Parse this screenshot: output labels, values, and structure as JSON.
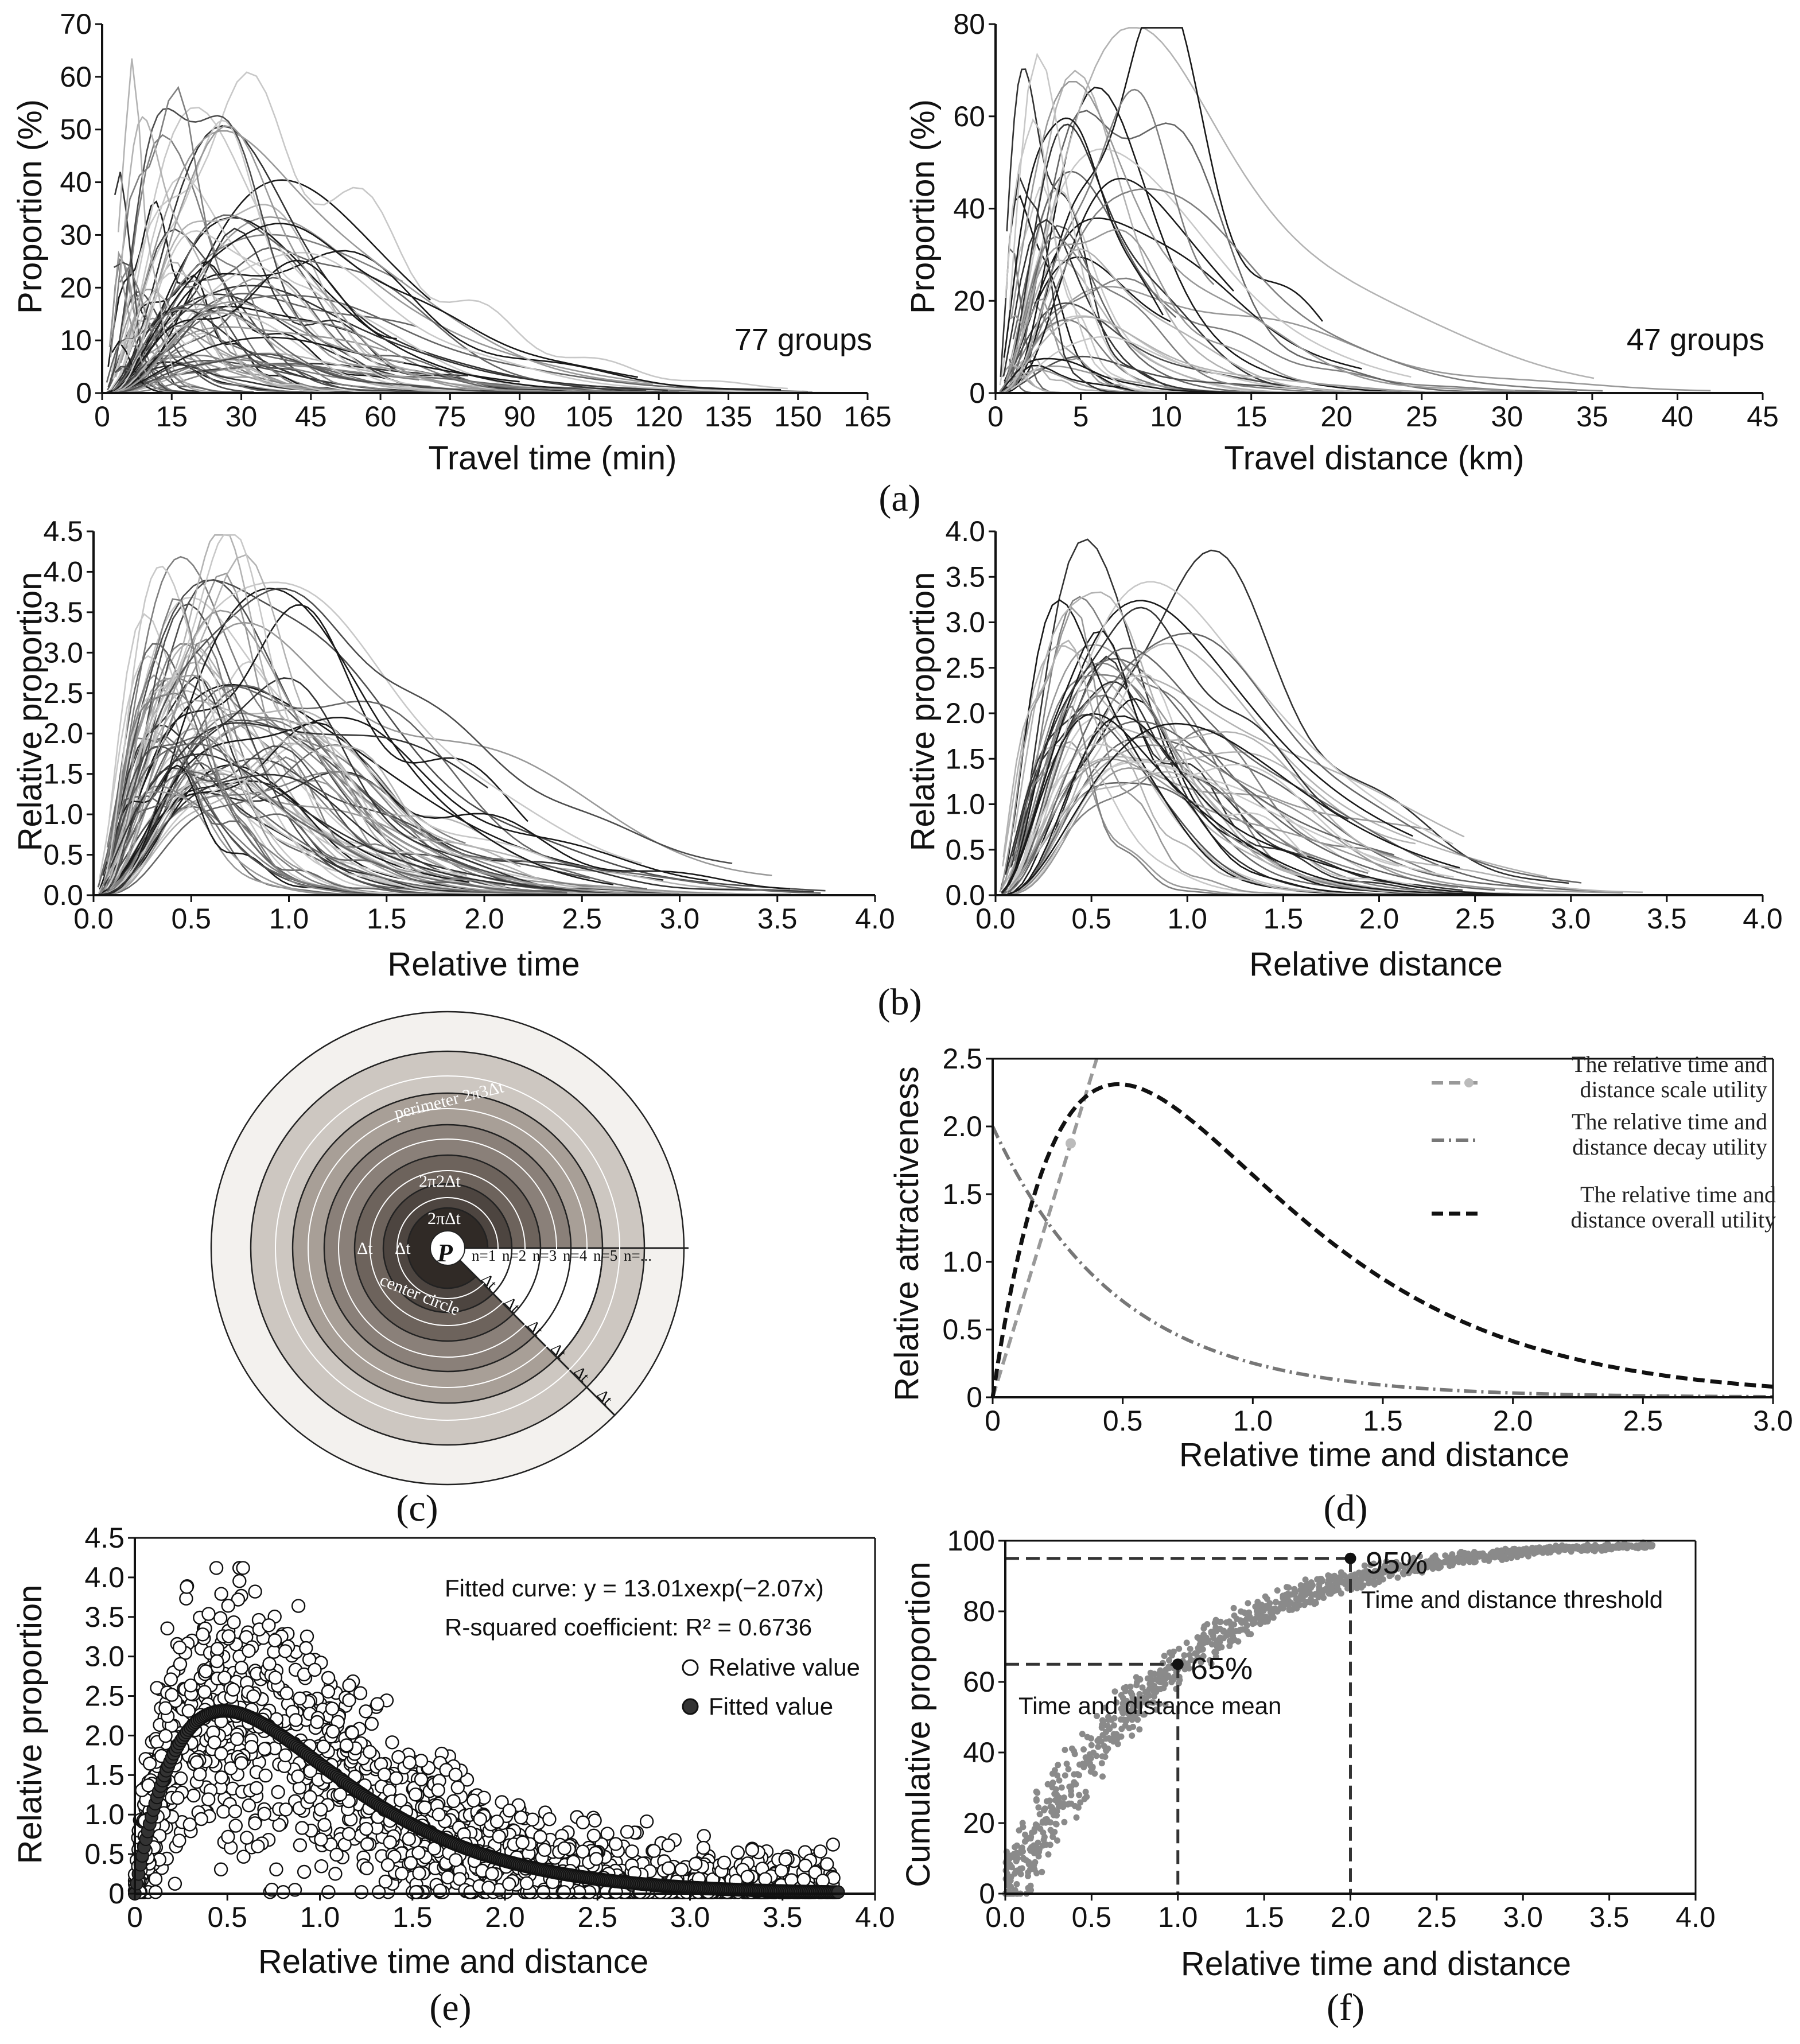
{
  "colors": {
    "ink": "#111111",
    "dark": "#333333",
    "mid": "#777777",
    "light": "#bbbbbb"
  },
  "panels": {
    "a": {
      "label": "(a)"
    },
    "b": {
      "label": "(b)"
    },
    "c": {
      "label": "(c)"
    },
    "d": {
      "label": "(d)"
    },
    "e": {
      "label": "(e)"
    },
    "f": {
      "label": "(f)"
    }
  },
  "chart_data": [
    {
      "id": "a_left",
      "type": "line",
      "xlabel": "Travel time (min)",
      "ylabel": "Proportion (%)",
      "xlim": [
        0,
        165
      ],
      "ylim": [
        0,
        70
      ],
      "xticks": [
        "0",
        "15",
        "30",
        "45",
        "60",
        "75",
        "90",
        "105",
        "120",
        "135",
        "150",
        "165"
      ],
      "yticks": [
        "0",
        "10",
        "20",
        "30",
        "40",
        "50",
        "60",
        "70"
      ],
      "annotation": "77 groups",
      "series_count": 77,
      "generator": {
        "peak_x_range": [
          3,
          40
        ],
        "peak_y_range": [
          5,
          62
        ],
        "end_x_range": [
          30,
          165
        ],
        "seed": 11
      }
    },
    {
      "id": "a_right",
      "type": "line",
      "xlabel": "Travel distance (km)",
      "ylabel": "Proportion (%)",
      "xlim": [
        0,
        45
      ],
      "ylim": [
        0,
        80
      ],
      "xticks": [
        "0",
        "5",
        "10",
        "15",
        "20",
        "25",
        "30",
        "35",
        "40",
        "45"
      ],
      "yticks": [
        "0",
        "20",
        "40",
        "60",
        "80"
      ],
      "annotation": "47 groups",
      "series_count": 47,
      "generator": {
        "peak_x_range": [
          0.3,
          9
        ],
        "peak_y_range": [
          5,
          78
        ],
        "end_x_range": [
          8,
          42
        ],
        "seed": 23
      }
    },
    {
      "id": "b_left",
      "type": "line",
      "xlabel": "Relative time",
      "ylabel": "Relative proportion",
      "xlim": [
        0,
        4.0
      ],
      "ylim": [
        0,
        4.5
      ],
      "xticks": [
        "0.0",
        "0.5",
        "1.0",
        "1.5",
        "2.0",
        "2.5",
        "3.0",
        "3.5",
        "4.0"
      ],
      "yticks": [
        "0.0",
        "0.5",
        "1.0",
        "1.5",
        "2.0",
        "2.5",
        "3.0",
        "3.5",
        "4.0",
        "4.5"
      ],
      "series_count": 77,
      "generator": {
        "peak_x_range": [
          0.3,
          1.0
        ],
        "peak_y_range": [
          1.4,
          4.1
        ],
        "end_x_range": [
          1.8,
          3.8
        ],
        "seed": 37
      }
    },
    {
      "id": "b_right",
      "type": "line",
      "xlabel": "Relative distance",
      "ylabel": "Relative proportion",
      "xlim": [
        0,
        4.0
      ],
      "ylim": [
        0,
        4.0
      ],
      "xticks": [
        "0.0",
        "0.5",
        "1.0",
        "1.5",
        "2.0",
        "2.5",
        "3.0",
        "3.5",
        "4.0"
      ],
      "yticks": [
        "0.0",
        "0.5",
        "1.0",
        "1.5",
        "2.0",
        "2.5",
        "3.0",
        "3.5",
        "4.0"
      ],
      "series_count": 47,
      "generator": {
        "peak_x_range": [
          0.3,
          1.0
        ],
        "peak_y_range": [
          1.4,
          3.7
        ],
        "end_x_range": [
          1.8,
          3.7
        ],
        "seed": 41
      }
    },
    {
      "id": "c_diagram",
      "type": "diagram",
      "labels": {
        "perimeter": "perimeter 2π3Δt",
        "ring2": "2π2Δt",
        "ring1": "2πΔt",
        "point": "P",
        "delta": "Δt",
        "center": "center circle",
        "n_labels": [
          "n=1",
          "n=2",
          "n=3",
          "n=4",
          "n=5",
          "n=..."
        ]
      },
      "ring_count": 7
    },
    {
      "id": "d_utility",
      "type": "line",
      "xlabel": "Relative time and distance",
      "ylabel": "Relative attractiveness",
      "xlim": [
        0,
        3.0
      ],
      "ylim": [
        0,
        2.5
      ],
      "xticks": [
        "0",
        "0.5",
        "1.0",
        "1.5",
        "2.0",
        "2.5",
        "3.0"
      ],
      "yticks": [
        "0",
        "0.5",
        "1.0",
        "1.5",
        "2.0",
        "2.5"
      ],
      "series": [
        {
          "name": "The relative time and distance scale utility",
          "legend_lines": [
            "The relative time and",
            "distance scale utility"
          ],
          "function": "linear",
          "a": 6.25,
          "x_max": 0.4
        },
        {
          "name": "The relative time and distance decay utility",
          "legend_lines": [
            "The relative time and",
            "distance decay utility"
          ],
          "function": "decay",
          "a": 2.0,
          "b": 2.07
        },
        {
          "name": "The relative time and distance overall utility",
          "legend_lines": [
            "The relative time and",
            "distance overall utility"
          ],
          "function": "product",
          "a": 13.01,
          "b": 2.07
        }
      ]
    },
    {
      "id": "e_fit",
      "type": "scatter",
      "xlabel": "Relative time and distance",
      "ylabel": "Relative proportion",
      "xlim": [
        0,
        4.0
      ],
      "ylim": [
        0,
        4.5
      ],
      "xticks": [
        "0",
        "0.5",
        "1.0",
        "1.5",
        "2.0",
        "2.5",
        "3.0",
        "3.5",
        "4.0"
      ],
      "yticks": [
        "0",
        "0.5",
        "1.0",
        "1.5",
        "2.0",
        "2.5",
        "3.0",
        "3.5",
        "4.0",
        "4.5"
      ],
      "fit_text": "Fitted curve: y = 13.01xexp(−2.07x)",
      "r2_text": "R-squared coefficient: R² = 0.6736",
      "fit": {
        "a": 13.01,
        "b": 2.07
      },
      "r_squared": 0.6736,
      "legend": [
        "Relative value",
        "Fitted value"
      ],
      "point_count": 1500
    },
    {
      "id": "f_cumulative",
      "type": "scatter",
      "xlabel": "Relative time and distance",
      "ylabel": "Cumulative proportion",
      "xlim": [
        0,
        4.0
      ],
      "ylim": [
        0,
        100
      ],
      "xticks": [
        "0.0",
        "0.5",
        "1.0",
        "1.5",
        "2.0",
        "2.5",
        "3.0",
        "3.5",
        "4.0"
      ],
      "yticks": [
        "0",
        "20",
        "40",
        "60",
        "80",
        "100"
      ],
      "point_count": 1100,
      "markers": [
        {
          "x": 1.0,
          "y": 65,
          "label": "65%",
          "caption": "Time and distance mean"
        },
        {
          "x": 2.0,
          "y": 95,
          "label": "95%",
          "caption": "Time and distance threshold"
        }
      ]
    }
  ]
}
